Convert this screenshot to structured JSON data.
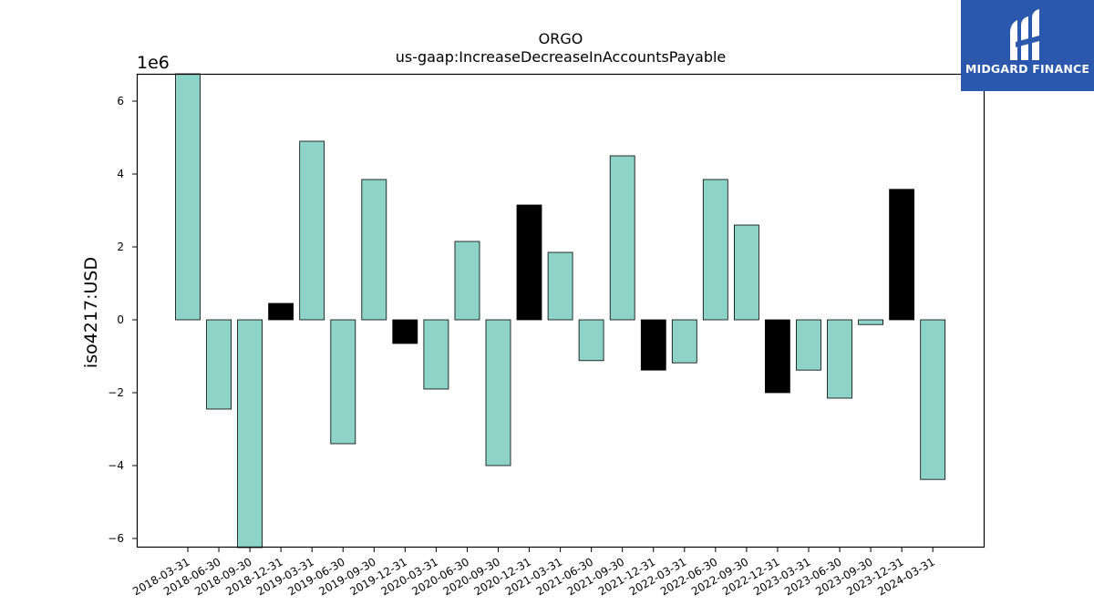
{
  "chart_data": {
    "type": "bar",
    "title": "ORGO",
    "subtitle": "us-gaap:IncreaseDecreaseInAccountsPayable",
    "ylabel": "iso4217:USD",
    "xlabel": "",
    "y_scale_label": "1e6",
    "ylim": [
      -6.25,
      6.75
    ],
    "yticks": [
      -6,
      -4,
      -2,
      0,
      2,
      4,
      6
    ],
    "ytick_labels": [
      "−6",
      "−4",
      "−2",
      "0",
      "2",
      "4",
      "6"
    ],
    "categories": [
      "2018-03-31",
      "2018-06-30",
      "2018-09-30",
      "2018-12-31",
      "2019-03-31",
      "2019-06-30",
      "2019-09-30",
      "2019-12-31",
      "2020-03-31",
      "2020-06-30",
      "2020-09-30",
      "2020-12-31",
      "2021-03-31",
      "2021-06-30",
      "2021-09-30",
      "2021-12-31",
      "2022-03-31",
      "2022-06-30",
      "2022-09-30",
      "2022-12-31",
      "2023-03-31",
      "2023-06-30",
      "2023-09-30",
      "2023-12-31",
      "2024-03-31"
    ],
    "values": [
      6.75,
      -2.45,
      -6.25,
      0.45,
      4.9,
      -3.4,
      3.85,
      -0.65,
      -1.9,
      2.15,
      -4.0,
      3.15,
      1.85,
      -1.12,
      4.5,
      -1.38,
      -1.18,
      3.85,
      2.6,
      -2.0,
      -1.38,
      -2.15,
      -0.13,
      3.58,
      -4.38
    ],
    "bar_colors": [
      "#8dd3c7",
      "#8dd3c7",
      "#8dd3c7",
      "#000000",
      "#8dd3c7",
      "#8dd3c7",
      "#8dd3c7",
      "#000000",
      "#8dd3c7",
      "#8dd3c7",
      "#8dd3c7",
      "#000000",
      "#8dd3c7",
      "#8dd3c7",
      "#8dd3c7",
      "#000000",
      "#8dd3c7",
      "#8dd3c7",
      "#8dd3c7",
      "#000000",
      "#8dd3c7",
      "#8dd3c7",
      "#8dd3c7",
      "#000000",
      "#8dd3c7"
    ],
    "grid": false,
    "legend": "none"
  },
  "logo": {
    "text": "MIDGARD FINANCE",
    "background": "#2b58ad"
  }
}
